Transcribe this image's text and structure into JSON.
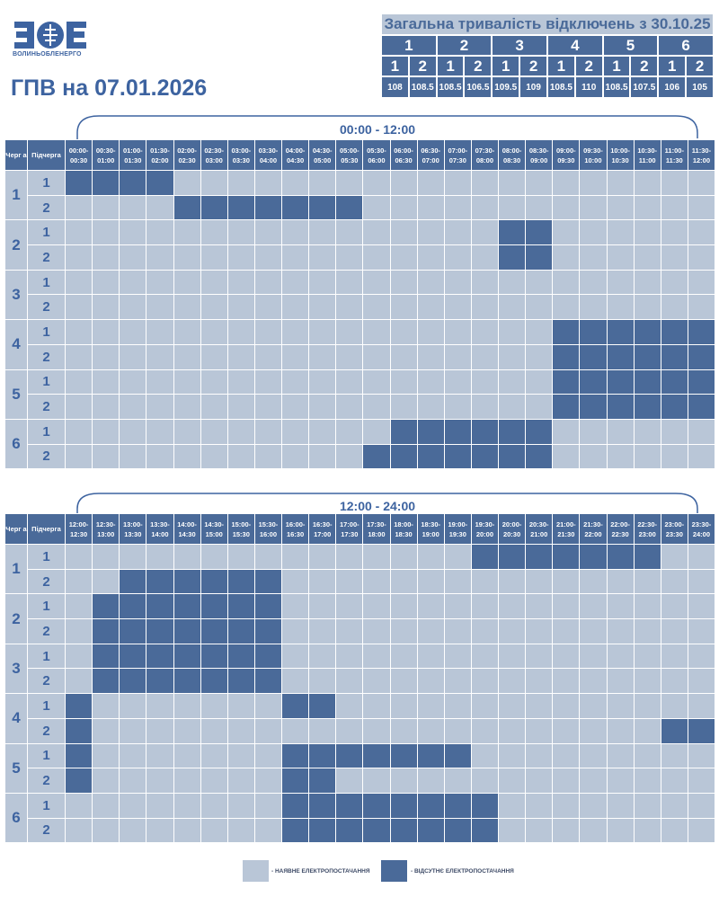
{
  "logo": {
    "text": "ВОЛИНЬОБЛЕНЕРГО"
  },
  "title": "ГПВ на 07.01.2026",
  "summary": {
    "title": "Загальна тривалість відключень з 30.10.25",
    "groups": [
      {
        "label": "1",
        "subs": [
          {
            "label": "1",
            "value": "108"
          },
          {
            "label": "2",
            "value": "108.5"
          }
        ]
      },
      {
        "label": "2",
        "subs": [
          {
            "label": "1",
            "value": "108.5"
          },
          {
            "label": "2",
            "value": "106.5"
          }
        ]
      },
      {
        "label": "3",
        "subs": [
          {
            "label": "1",
            "value": "109.5"
          },
          {
            "label": "2",
            "value": "109"
          }
        ]
      },
      {
        "label": "4",
        "subs": [
          {
            "label": "1",
            "value": "108.5"
          },
          {
            "label": "2",
            "value": "110"
          }
        ]
      },
      {
        "label": "5",
        "subs": [
          {
            "label": "1",
            "value": "108.5"
          },
          {
            "label": "2",
            "value": "107.5"
          }
        ]
      },
      {
        "label": "6",
        "subs": [
          {
            "label": "1",
            "value": "106"
          },
          {
            "label": "2",
            "value": "105"
          }
        ]
      }
    ]
  },
  "colors": {
    "off": "#4a6a99",
    "on": "#b9c6d7",
    "accent": "#3d63a0"
  },
  "headers": {
    "queue": "Черг а",
    "subqueue": "Підчерга"
  },
  "halves": [
    {
      "label": "00:00 - 12:00",
      "slots": [
        "00:00- 00:30",
        "00:30- 01:00",
        "01:00- 01:30",
        "01:30- 02:00",
        "02:00- 02:30",
        "02:30- 03:00",
        "03:00- 03:30",
        "03:30- 04:00",
        "04:00- 04:30",
        "04:30- 05:00",
        "05:00- 05:30",
        "05:30- 06:00",
        "06:00- 06:30",
        "06:30- 07:00",
        "07:00- 07:30",
        "07:30- 08:00",
        "08:00- 08:30",
        "08:30- 09:00",
        "09:00- 09:30",
        "09:30- 10:00",
        "10:00- 10:30",
        "10:30- 11:00",
        "11:00- 11:30",
        "11:30- 12:00"
      ],
      "queues": [
        {
          "label": "1",
          "subs": [
            {
              "label": "1",
              "off": [
                0,
                1,
                2,
                3
              ]
            },
            {
              "label": "2",
              "off": [
                4,
                5,
                6,
                7,
                8,
                9,
                10
              ]
            }
          ]
        },
        {
          "label": "2",
          "subs": [
            {
              "label": "1",
              "off": [
                16,
                17
              ]
            },
            {
              "label": "2",
              "off": [
                16,
                17
              ]
            }
          ]
        },
        {
          "label": "3",
          "subs": [
            {
              "label": "1",
              "off": []
            },
            {
              "label": "2",
              "off": []
            }
          ]
        },
        {
          "label": "4",
          "subs": [
            {
              "label": "1",
              "off": [
                18,
                19,
                20,
                21,
                22,
                23
              ]
            },
            {
              "label": "2",
              "off": [
                18,
                19,
                20,
                21,
                22,
                23
              ]
            }
          ]
        },
        {
          "label": "5",
          "subs": [
            {
              "label": "1",
              "off": [
                18,
                19,
                20,
                21,
                22,
                23
              ]
            },
            {
              "label": "2",
              "off": [
                18,
                19,
                20,
                21,
                22,
                23
              ]
            }
          ]
        },
        {
          "label": "6",
          "subs": [
            {
              "label": "1",
              "off": [
                12,
                13,
                14,
                15,
                16,
                17
              ]
            },
            {
              "label": "2",
              "off": [
                11,
                12,
                13,
                14,
                15,
                16,
                17
              ]
            }
          ]
        }
      ]
    },
    {
      "label": "12:00 - 24:00",
      "slots": [
        "12:00- 12:30",
        "12:30- 13:00",
        "13:00- 13:30",
        "13:30- 14:00",
        "14:00- 14:30",
        "14:30- 15:00",
        "15:00- 15:30",
        "15:30- 16:00",
        "16:00- 16:30",
        "16:30- 17:00",
        "17:00- 17:30",
        "17:30- 18:00",
        "18:00- 18:30",
        "18:30- 19:00",
        "19:00- 19:30",
        "19:30- 20:00",
        "20:00- 20:30",
        "20:30- 21:00",
        "21:00- 21:30",
        "21:30- 22:00",
        "22:00- 22:30",
        "22:30- 23:00",
        "23:00- 23:30",
        "23:30- 24:00"
      ],
      "queues": [
        {
          "label": "1",
          "subs": [
            {
              "label": "1",
              "off": [
                15,
                16,
                17,
                18,
                19,
                20,
                21
              ]
            },
            {
              "label": "2",
              "off": [
                2,
                3,
                4,
                5,
                6,
                7
              ]
            }
          ]
        },
        {
          "label": "2",
          "subs": [
            {
              "label": "1",
              "off": [
                1,
                2,
                3,
                4,
                5,
                6,
                7
              ]
            },
            {
              "label": "2",
              "off": [
                1,
                2,
                3,
                4,
                5,
                6,
                7
              ]
            }
          ]
        },
        {
          "label": "3",
          "subs": [
            {
              "label": "1",
              "off": [
                1,
                2,
                3,
                4,
                5,
                6,
                7
              ]
            },
            {
              "label": "2",
              "off": [
                1,
                2,
                3,
                4,
                5,
                6,
                7
              ]
            }
          ]
        },
        {
          "label": "4",
          "subs": [
            {
              "label": "1",
              "off": [
                0,
                8,
                9
              ]
            },
            {
              "label": "2",
              "off": [
                0,
                22,
                23
              ]
            }
          ]
        },
        {
          "label": "5",
          "subs": [
            {
              "label": "1",
              "off": [
                0,
                8,
                9,
                10,
                11,
                12,
                13,
                14
              ]
            },
            {
              "label": "2",
              "off": [
                0,
                8,
                9
              ]
            }
          ]
        },
        {
          "label": "6",
          "subs": [
            {
              "label": "1",
              "off": [
                8,
                9,
                10,
                11,
                12,
                13,
                14,
                15
              ]
            },
            {
              "label": "2",
              "off": [
                8,
                9,
                10,
                11,
                12,
                13,
                14,
                15
              ]
            }
          ]
        }
      ]
    }
  ],
  "legend": {
    "on": "- НАЯВНЕ ЕЛЕКТРОПОСТАЧАННЯ",
    "off": "- ВІДСУТНЄ ЕЛЕКТРОПОСТАЧАННЯ"
  }
}
